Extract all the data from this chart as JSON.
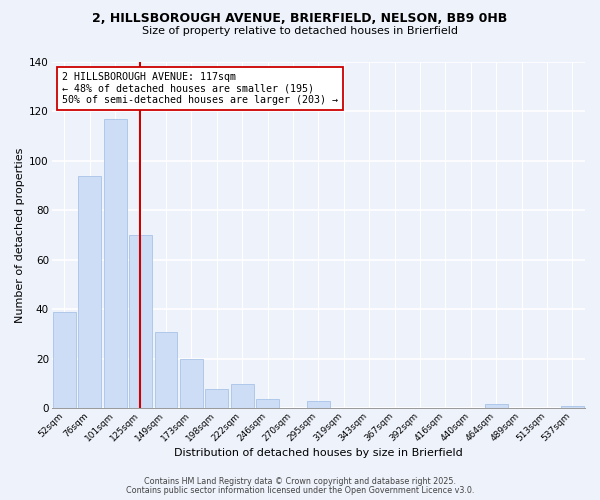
{
  "title_line1": "2, HILLSBOROUGH AVENUE, BRIERFIELD, NELSON, BB9 0HB",
  "title_line2": "Size of property relative to detached houses in Brierfield",
  "xlabel": "Distribution of detached houses by size in Brierfield",
  "ylabel": "Number of detached properties",
  "bar_labels": [
    "52sqm",
    "76sqm",
    "101sqm",
    "125sqm",
    "149sqm",
    "173sqm",
    "198sqm",
    "222sqm",
    "246sqm",
    "270sqm",
    "295sqm",
    "319sqm",
    "343sqm",
    "367sqm",
    "392sqm",
    "416sqm",
    "440sqm",
    "464sqm",
    "489sqm",
    "513sqm",
    "537sqm"
  ],
  "bar_values": [
    39,
    94,
    117,
    70,
    31,
    20,
    8,
    10,
    4,
    0,
    3,
    0,
    0,
    0,
    0,
    0,
    0,
    2,
    0,
    0,
    1
  ],
  "bar_color": "#ccddf5",
  "bar_edge_color": "#a8c4e8",
  "ylim": [
    0,
    140
  ],
  "yticks": [
    0,
    20,
    40,
    60,
    80,
    100,
    120,
    140
  ],
  "vline_x": 2.97,
  "vline_color": "#cc0000",
  "annotation_text": "2 HILLSBOROUGH AVENUE: 117sqm\n← 48% of detached houses are smaller (195)\n50% of semi-detached houses are larger (203) →",
  "annotation_box_color": "#ffffff",
  "annotation_box_edge": "#cc0000",
  "footer_line1": "Contains HM Land Registry data © Crown copyright and database right 2025.",
  "footer_line2": "Contains public sector information licensed under the Open Government Licence v3.0.",
  "background_color": "#eef2fb"
}
